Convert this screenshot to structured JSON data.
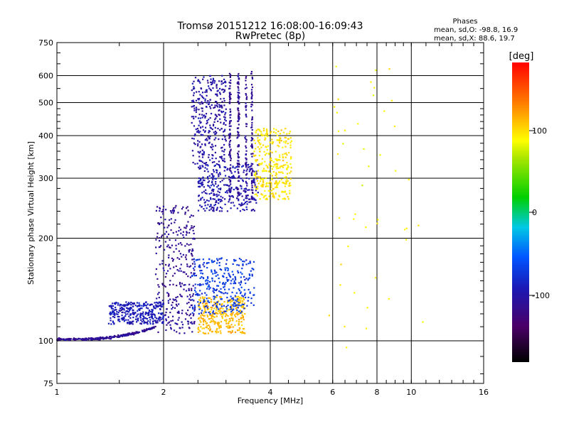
{
  "chart_data": {
    "type": "scatter",
    "title": "Tromsø 20151212 16:08:00-16:09:43",
    "subtitle": "RwPretec (8p)",
    "xlabel": "Frequency [MHz]",
    "ylabel": "Stationary phase Virtual Height [km]",
    "x_scale": "log",
    "y_scale": "log",
    "xlim": [
      1,
      16
    ],
    "ylim": [
      75,
      750
    ],
    "grid": true,
    "x_ticks": [
      "1",
      "2",
      "4",
      "6",
      "8",
      "10",
      "16"
    ],
    "y_ticks": [
      "75",
      "100",
      "200",
      "300",
      "400",
      "500",
      "600",
      "750"
    ],
    "phase_box": {
      "title": "Phases",
      "line_o": "mean, sd,O: -98.8, 16.9",
      "line_x": "mean, sd,X:  88.6, 19.7"
    },
    "colorbar": {
      "unit": "[deg]",
      "ticks": [
        "100",
        "0",
        "-100"
      ],
      "range": [
        -180,
        180
      ]
    },
    "point_groups": [
      {
        "phase_mean": -110,
        "x_range": [
          1.0,
          1.9
        ],
        "height_range": [
          101,
          110
        ],
        "shape": "trace"
      },
      {
        "phase_mean": -110,
        "x_range": [
          1.9,
          2.45
        ],
        "height_range": [
          105,
          250
        ],
        "shape": "cloud"
      },
      {
        "phase_mean": -100,
        "x_range": [
          2.4,
          3.0
        ],
        "height_range": [
          330,
          600
        ],
        "shape": "cloud"
      },
      {
        "phase_mean": -95,
        "x_range": [
          2.5,
          3.7
        ],
        "height_range": [
          240,
          330
        ],
        "shape": "cloud"
      },
      {
        "phase_mean": -110,
        "x_range": [
          3.05,
          3.6
        ],
        "height_range": [
          260,
          620
        ],
        "shape": "columns"
      },
      {
        "phase_mean": 95,
        "x_range": [
          3.6,
          4.6
        ],
        "height_range": [
          260,
          420
        ],
        "shape": "cloud"
      },
      {
        "phase_mean": 110,
        "x_range": [
          2.5,
          3.4
        ],
        "height_range": [
          105,
          135
        ],
        "shape": "cloud"
      },
      {
        "phase_mean": -90,
        "x_range": [
          1.4,
          2.0
        ],
        "height_range": [
          112,
          130
        ],
        "shape": "cloud"
      },
      {
        "phase_mean": -70,
        "x_range": [
          2.4,
          3.6
        ],
        "height_range": [
          120,
          175
        ],
        "shape": "cloud"
      },
      {
        "phase_mean": 90,
        "x_range": [
          5.8,
          11.0
        ],
        "height_range": [
          90,
          650
        ],
        "shape": "sparse"
      }
    ]
  }
}
